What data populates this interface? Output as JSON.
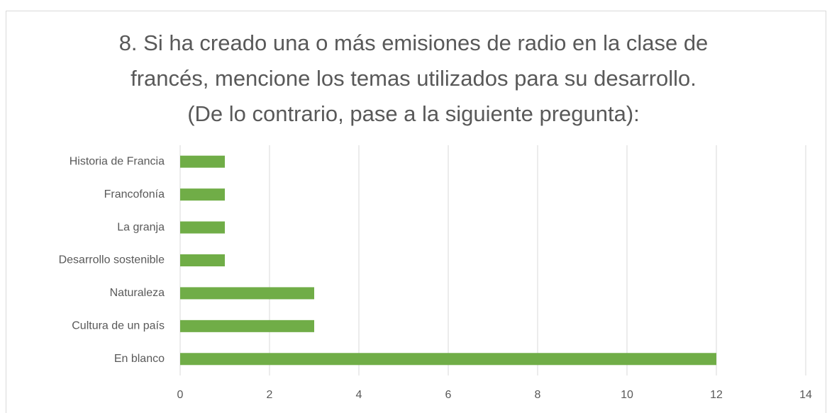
{
  "chart_data": {
    "type": "hbar",
    "title": [
      "8. Si ha creado una o más emisiones de radio en la clase de",
      "francés, mencione los temas utilizados para su desarrollo.",
      "(De lo contrario, pase a la siguiente pregunta):"
    ],
    "categories": [
      "Historia de Francia",
      "Francofonía",
      "La granja",
      "Desarrollo sostenible",
      "Naturaleza",
      "Cultura de un país",
      "En blanco"
    ],
    "values": [
      1,
      1,
      1,
      1,
      3,
      3,
      12
    ],
    "color": "#70ad47",
    "xlim": [
      0,
      14
    ],
    "xticks": [
      0,
      2,
      4,
      6,
      8,
      10,
      12,
      14
    ],
    "grid": true
  }
}
